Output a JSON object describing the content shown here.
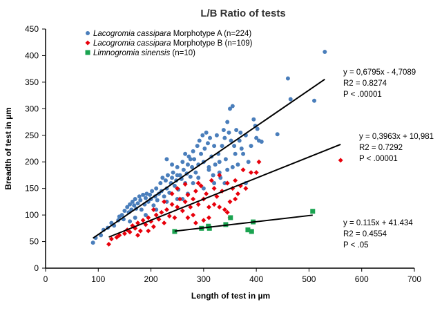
{
  "chart_data": {
    "type": "scatter",
    "title": "L/B Ratio of tests",
    "xlabel": "Length of test  in  µm",
    "ylabel": "Breadth of test in µm",
    "xlim": [
      0,
      700
    ],
    "ylim": [
      0,
      450
    ],
    "xticks": [
      "0",
      "100",
      "200",
      "300",
      "400",
      "500",
      "600",
      "700"
    ],
    "yticks": [
      "0",
      "50",
      "100",
      "150",
      "200",
      "250",
      "300",
      "350",
      "400",
      "450"
    ],
    "grid": false,
    "legend_position": "top-left",
    "series": [
      {
        "name_italic": "Lacogromia  cassipara",
        "name_rest": " Morphotype  A  (n=224)",
        "marker": "circle",
        "color": "#4a7ebb",
        "trend": {
          "slope": 0.6795,
          "intercept": -4.7089,
          "x_range": [
            90,
            530
          ]
        },
        "equation": [
          "y = 0,6795x - 4,7089",
          "R2 = 0.8274",
          "P < .00001"
        ],
        "points": [
          [
            90,
            48
          ],
          [
            95,
            57
          ],
          [
            105,
            62
          ],
          [
            110,
            72
          ],
          [
            118,
            76
          ],
          [
            125,
            85
          ],
          [
            130,
            80
          ],
          [
            138,
            90
          ],
          [
            140,
            97
          ],
          [
            145,
            100
          ],
          [
            148,
            92
          ],
          [
            150,
            108
          ],
          [
            155,
            115
          ],
          [
            158,
            105
          ],
          [
            160,
            120
          ],
          [
            163,
            110
          ],
          [
            165,
            125
          ],
          [
            168,
            118
          ],
          [
            170,
            130
          ],
          [
            172,
            112
          ],
          [
            175,
            122
          ],
          [
            178,
            135
          ],
          [
            180,
            128
          ],
          [
            182,
            110
          ],
          [
            185,
            138
          ],
          [
            188,
            120
          ],
          [
            190,
            132
          ],
          [
            192,
            140
          ],
          [
            195,
            125
          ],
          [
            198,
            138
          ],
          [
            200,
            130
          ],
          [
            202,
            145
          ],
          [
            205,
            118
          ],
          [
            208,
            135
          ],
          [
            210,
            150
          ],
          [
            212,
            128
          ],
          [
            215,
            140
          ],
          [
            218,
            160
          ],
          [
            220,
            145
          ],
          [
            222,
            170
          ],
          [
            225,
            135
          ],
          [
            228,
            165
          ],
          [
            230,
            150
          ],
          [
            232,
            175
          ],
          [
            235,
            142
          ],
          [
            238,
            160
          ],
          [
            240,
            170
          ],
          [
            242,
            180
          ],
          [
            245,
            155
          ],
          [
            248,
            165
          ],
          [
            250,
            190
          ],
          [
            252,
            148
          ],
          [
            255,
            175
          ],
          [
            258,
            168
          ],
          [
            260,
            200
          ],
          [
            262,
            185
          ],
          [
            265,
            160
          ],
          [
            268,
            178
          ],
          [
            270,
            195
          ],
          [
            272,
            210
          ],
          [
            275,
            172
          ],
          [
            278,
            190
          ],
          [
            280,
            220
          ],
          [
            282,
            205
          ],
          [
            285,
            180
          ],
          [
            288,
            230
          ],
          [
            290,
            195
          ],
          [
            292,
            240
          ],
          [
            295,
            215
          ],
          [
            298,
            250
          ],
          [
            300,
            200
          ],
          [
            302,
            225
          ],
          [
            305,
            255
          ],
          [
            308,
            235
          ],
          [
            310,
            190
          ],
          [
            312,
            245
          ],
          [
            315,
            210
          ],
          [
            318,
            175
          ],
          [
            320,
            230
          ],
          [
            322,
            195
          ],
          [
            325,
            250
          ],
          [
            328,
            215
          ],
          [
            330,
            200
          ],
          [
            332,
            170
          ],
          [
            335,
            230
          ],
          [
            338,
            260
          ],
          [
            340,
            245
          ],
          [
            342,
            205
          ],
          [
            345,
            275
          ],
          [
            348,
            255
          ],
          [
            350,
            300
          ],
          [
            352,
            240
          ],
          [
            355,
            305
          ],
          [
            358,
            230
          ],
          [
            360,
            215
          ],
          [
            362,
            260
          ],
          [
            365,
            195
          ],
          [
            368,
            240
          ],
          [
            370,
            255
          ],
          [
            372,
            225
          ],
          [
            375,
            215
          ],
          [
            380,
            250
          ],
          [
            385,
            200
          ],
          [
            390,
            230
          ],
          [
            395,
            280
          ],
          [
            398,
            268
          ],
          [
            400,
            245
          ],
          [
            402,
            262
          ],
          [
            405,
            240
          ],
          [
            410,
            238
          ],
          [
            440,
            252
          ],
          [
            460,
            357
          ],
          [
            465,
            318
          ],
          [
            510,
            315
          ],
          [
            530,
            407
          ],
          [
            380,
            160
          ],
          [
            340,
            160
          ],
          [
            300,
            150
          ],
          [
            270,
            140
          ],
          [
            250,
            130
          ],
          [
            230,
            125
          ],
          [
            210,
            110
          ],
          [
            190,
            100
          ],
          [
            170,
            95
          ],
          [
            160,
            88
          ],
          [
            230,
            205
          ],
          [
            240,
            195
          ],
          [
            260,
            130
          ],
          [
            280,
            160
          ],
          [
            320,
            160
          ],
          [
            290,
            170
          ],
          [
            310,
            185
          ],
          [
            330,
            180
          ],
          [
            345,
            185
          ],
          [
            355,
            190
          ],
          [
            250,
            175
          ],
          [
            275,
            205
          ],
          [
            265,
            215
          ]
        ]
      },
      {
        "name_italic": "Lacogromia  cassipara",
        "name_rest": " Morphotype  B  (n=109)",
        "marker": "diamond",
        "color": "#e8000b",
        "trend": {
          "slope": 0.3963,
          "intercept": 10.981,
          "x_range": [
            120,
            560
          ]
        },
        "equation": [
          "y = 0,3963x + 10,981",
          "R2 = 0.7292",
          "P < .00001"
        ],
        "points": [
          [
            120,
            45
          ],
          [
            125,
            55
          ],
          [
            135,
            58
          ],
          [
            140,
            62
          ],
          [
            150,
            65
          ],
          [
            155,
            72
          ],
          [
            160,
            68
          ],
          [
            165,
            80
          ],
          [
            170,
            75
          ],
          [
            175,
            85
          ],
          [
            180,
            70
          ],
          [
            185,
            90
          ],
          [
            190,
            82
          ],
          [
            195,
            95
          ],
          [
            200,
            88
          ],
          [
            205,
            78
          ],
          [
            210,
            100
          ],
          [
            215,
            92
          ],
          [
            220,
            105
          ],
          [
            225,
            85
          ],
          [
            230,
            110
          ],
          [
            235,
            98
          ],
          [
            240,
            120
          ],
          [
            245,
            95
          ],
          [
            250,
            115
          ],
          [
            255,
            130
          ],
          [
            260,
            108
          ],
          [
            265,
            125
          ],
          [
            270,
            138
          ],
          [
            275,
            115
          ],
          [
            280,
            130
          ],
          [
            285,
            145
          ],
          [
            290,
            120
          ],
          [
            295,
            155
          ],
          [
            300,
            130
          ],
          [
            305,
            140
          ],
          [
            310,
            115
          ],
          [
            315,
            165
          ],
          [
            320,
            150
          ],
          [
            325,
            135
          ],
          [
            330,
            175
          ],
          [
            335,
            145
          ],
          [
            340,
            110
          ],
          [
            345,
            160
          ],
          [
            350,
            125
          ],
          [
            355,
            150
          ],
          [
            360,
            165
          ],
          [
            365,
            140
          ],
          [
            370,
            155
          ],
          [
            375,
            185
          ],
          [
            380,
            150
          ],
          [
            390,
            180
          ],
          [
            400,
            180
          ],
          [
            405,
            200
          ],
          [
            560,
            203
          ],
          [
            280,
            100
          ],
          [
            300,
            90
          ],
          [
            330,
            115
          ],
          [
            345,
            105
          ],
          [
            360,
            130
          ],
          [
            250,
            150
          ],
          [
            265,
            158
          ],
          [
            240,
            140
          ],
          [
            225,
            125
          ],
          [
            205,
            110
          ],
          [
            310,
            95
          ],
          [
            285,
            85
          ],
          [
            270,
            95
          ],
          [
            195,
            70
          ],
          [
            175,
            62
          ],
          [
            290,
            160
          ],
          [
            320,
            120
          ],
          [
            350,
            95
          ]
        ]
      },
      {
        "name_italic": "Limnogromia sinensis",
        "name_rest": " (n=10)",
        "marker": "square",
        "color": "#1aa350",
        "trend": {
          "slope": 0.115,
          "intercept": 41.434,
          "x_range": [
            245,
            507
          ]
        },
        "equation": [
          "y = 0.115x + 41.434",
          "R2 = 0.4554",
          "P < .05"
        ],
        "points": [
          [
            245,
            69
          ],
          [
            296,
            75
          ],
          [
            309,
            79
          ],
          [
            311,
            75
          ],
          [
            342,
            82
          ],
          [
            351,
            95
          ],
          [
            384,
            72
          ],
          [
            391,
            69
          ],
          [
            394,
            87
          ],
          [
            507,
            107
          ]
        ]
      }
    ]
  }
}
